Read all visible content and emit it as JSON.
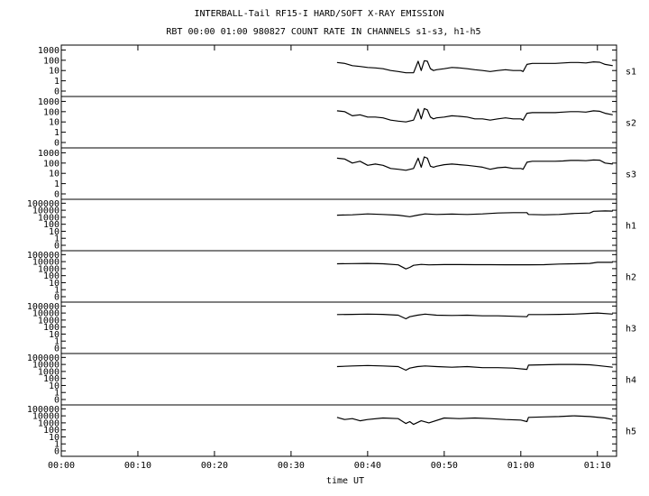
{
  "chart_data": {
    "type": "line",
    "title": "INTERBALL-Tail RF15-I HARD/SOFT X-RAY EMISSION",
    "subtitle": "RBT 00:00 01:00 980827  COUNT RATE IN CHANNELS s1-s3, h1-h5",
    "xlabel": "time UT",
    "x_tick_labels": [
      "00:00",
      "00:10",
      "00:20",
      "00:30",
      "00:40",
      "00:50",
      "01:00",
      "01:10"
    ],
    "x_ticks_min": [
      0,
      10,
      20,
      30,
      40,
      50,
      60,
      70
    ],
    "xlim_min": [
      0,
      72.5
    ],
    "y_scale": "log",
    "grid": false,
    "panels": [
      {
        "channel": "s1",
        "y_tick_labels": [
          "1000",
          "100",
          "10",
          "1",
          "0"
        ],
        "y_tick_values": [
          1000,
          100,
          10,
          1,
          0.1
        ],
        "ylim": [
          0.1,
          2000
        ],
        "x_min": [
          36.0,
          37.0,
          38.0,
          39.0,
          40.0,
          41.0,
          42.0,
          43.0,
          44.0,
          45.0,
          46.0,
          46.6,
          47.0,
          47.4,
          47.8,
          48.2,
          48.6,
          49.0,
          50.0,
          51.0,
          52.0,
          53.0,
          54.0,
          55.0,
          56.0,
          57.0,
          58.0,
          59.0,
          60.0,
          60.3,
          60.8,
          61.5,
          62.5,
          63.5,
          64.5,
          65.5,
          66.5,
          67.5,
          68.5,
          69.5,
          70.3,
          71.0,
          72.0
        ],
        "values": [
          60,
          50,
          30,
          25,
          20,
          18,
          15,
          10,
          8,
          6,
          6,
          80,
          10,
          90,
          80,
          15,
          10,
          12,
          15,
          20,
          18,
          15,
          12,
          10,
          8,
          10,
          12,
          10,
          10,
          8,
          40,
          50,
          50,
          50,
          50,
          55,
          60,
          60,
          55,
          70,
          65,
          40,
          30
        ]
      },
      {
        "channel": "s2",
        "y_tick_labels": [
          "1000",
          "100",
          "10",
          "1",
          "0"
        ],
        "y_tick_values": [
          1000,
          100,
          10,
          1,
          0.1
        ],
        "ylim": [
          0.1,
          2000
        ],
        "x_min": [
          36.0,
          37.0,
          38.0,
          39.0,
          40.0,
          41.0,
          42.0,
          43.0,
          44.0,
          45.0,
          46.0,
          46.6,
          47.0,
          47.4,
          47.8,
          48.2,
          48.6,
          49.0,
          50.0,
          51.0,
          52.0,
          53.0,
          54.0,
          55.0,
          56.0,
          57.0,
          58.0,
          59.0,
          60.0,
          60.3,
          60.8,
          61.5,
          62.5,
          63.5,
          64.5,
          65.5,
          66.5,
          67.5,
          68.5,
          69.5,
          70.3,
          71.0,
          72.0
        ],
        "values": [
          120,
          100,
          40,
          50,
          30,
          30,
          25,
          15,
          12,
          10,
          15,
          180,
          20,
          200,
          150,
          30,
          20,
          25,
          30,
          40,
          35,
          30,
          20,
          20,
          15,
          20,
          25,
          20,
          20,
          15,
          70,
          80,
          80,
          80,
          80,
          90,
          100,
          100,
          90,
          120,
          110,
          70,
          50
        ]
      },
      {
        "channel": "s3",
        "y_tick_labels": [
          "1000",
          "100",
          "10",
          "1",
          "0"
        ],
        "y_tick_values": [
          1000,
          100,
          10,
          1,
          0.1
        ],
        "ylim": [
          0.1,
          2000
        ],
        "x_min": [
          36.0,
          37.0,
          38.0,
          39.0,
          40.0,
          41.0,
          42.0,
          43.0,
          44.0,
          45.0,
          46.0,
          46.6,
          47.0,
          47.4,
          47.8,
          48.2,
          48.6,
          49.0,
          50.0,
          51.0,
          52.0,
          53.0,
          54.0,
          55.0,
          56.0,
          57.0,
          58.0,
          59.0,
          60.0,
          60.3,
          60.8,
          61.5,
          62.5,
          63.5,
          64.5,
          65.5,
          66.5,
          67.5,
          68.5,
          69.5,
          70.3,
          71.0,
          72.0
        ],
        "values": [
          300,
          250,
          100,
          150,
          60,
          80,
          60,
          30,
          25,
          20,
          30,
          300,
          40,
          400,
          300,
          50,
          40,
          50,
          70,
          80,
          70,
          60,
          50,
          40,
          25,
          35,
          40,
          30,
          30,
          25,
          120,
          150,
          150,
          150,
          150,
          160,
          180,
          180,
          170,
          200,
          190,
          100,
          80
        ]
      },
      {
        "channel": "h1",
        "y_tick_labels": [
          "100000",
          "10000",
          "1000",
          "100",
          "10",
          "1",
          "0"
        ],
        "y_tick_values": [
          100000,
          10000,
          1000,
          100,
          10,
          1,
          0.1
        ],
        "ylim": [
          0.1,
          200000
        ],
        "x_min": [
          36.0,
          38.0,
          40.0,
          42.0,
          44.0,
          45.5,
          46.5,
          47.5,
          49.0,
          51.0,
          53.0,
          55.0,
          57.0,
          59.0,
          60.8,
          61.0,
          63.0,
          65.0,
          67.0,
          69.0,
          69.5,
          71.0,
          72.0
        ],
        "values": [
          2000,
          2200,
          3000,
          2500,
          2000,
          1200,
          2000,
          3000,
          2500,
          2800,
          2500,
          3000,
          4000,
          4500,
          4500,
          2500,
          2200,
          2500,
          3500,
          4000,
          7000,
          8000,
          7500
        ]
      },
      {
        "channel": "h2",
        "y_tick_labels": [
          "100000",
          "10000",
          "1000",
          "100",
          "10",
          "1",
          "0"
        ],
        "y_tick_values": [
          100000,
          10000,
          1000,
          100,
          10,
          1,
          0.1
        ],
        "ylim": [
          0.1,
          200000
        ],
        "x_min": [
          36.0,
          38.0,
          40.0,
          42.0,
          44.0,
          45.0,
          45.5,
          46.0,
          47.0,
          48.0,
          50.0,
          52.0,
          54.0,
          56.0,
          58.0,
          60.0,
          61.0,
          63.0,
          65.0,
          67.0,
          69.0,
          70.0,
          72.0
        ],
        "values": [
          5000,
          5200,
          5500,
          5000,
          3500,
          900,
          1500,
          3000,
          4000,
          3500,
          3800,
          3800,
          3700,
          3700,
          3600,
          3600,
          3600,
          3700,
          4500,
          5000,
          5500,
          8000,
          8000
        ]
      },
      {
        "channel": "h3",
        "y_tick_labels": [
          "100000",
          "10000",
          "1000",
          "100",
          "10",
          "1",
          "0"
        ],
        "y_tick_values": [
          100000,
          10000,
          1000,
          100,
          10,
          1,
          0.1
        ],
        "ylim": [
          0.1,
          200000
        ],
        "x_min": [
          36.0,
          38.0,
          40.0,
          42.0,
          44.0,
          45.0,
          45.5,
          46.5,
          47.5,
          49.0,
          51.0,
          53.0,
          55.0,
          57.0,
          59.0,
          60.8,
          61.0,
          63.0,
          65.0,
          67.0,
          69.0,
          70.0,
          72.0
        ],
        "values": [
          6000,
          6500,
          7000,
          6500,
          5000,
          1500,
          3000,
          5000,
          7000,
          5000,
          4500,
          5000,
          4000,
          4000,
          3500,
          3000,
          6000,
          6000,
          6500,
          7000,
          9000,
          10000,
          7000
        ]
      },
      {
        "channel": "h4",
        "y_tick_labels": [
          "100000",
          "10000",
          "1000",
          "100",
          "10",
          "1",
          "0"
        ],
        "y_tick_values": [
          100000,
          10000,
          1000,
          100,
          10,
          1,
          0.1
        ],
        "ylim": [
          0.1,
          200000
        ],
        "x_min": [
          36.0,
          38.0,
          40.0,
          42.0,
          44.0,
          45.0,
          45.5,
          46.5,
          47.5,
          49.0,
          51.0,
          53.0,
          55.0,
          57.0,
          59.0,
          60.8,
          61.0,
          63.0,
          65.0,
          67.0,
          69.0,
          70.0,
          72.0
        ],
        "values": [
          5000,
          6000,
          7000,
          6000,
          5000,
          1500,
          3000,
          5000,
          6000,
          5000,
          4000,
          5000,
          3500,
          3500,
          3000,
          2000,
          8000,
          9000,
          10000,
          10000,
          9000,
          7000,
          4000
        ]
      },
      {
        "channel": "h5",
        "y_tick_labels": [
          "100000",
          "10000",
          "1000",
          "100",
          "10",
          "1",
          "0"
        ],
        "y_tick_values": [
          100000,
          10000,
          1000,
          100,
          10,
          1,
          0.1
        ],
        "ylim": [
          0.1,
          200000
        ],
        "x_min": [
          36.0,
          37.0,
          38.0,
          39.0,
          40.0,
          42.0,
          44.0,
          45.0,
          45.5,
          46.0,
          47.0,
          48.0,
          50.0,
          52.0,
          54.0,
          56.0,
          58.0,
          60.0,
          60.8,
          61.0,
          63.0,
          65.0,
          67.0,
          69.0,
          71.0,
          72.0
        ],
        "values": [
          6000,
          3000,
          4000,
          2000,
          3000,
          5000,
          4000,
          800,
          1500,
          600,
          2000,
          1000,
          5000,
          4000,
          5000,
          4000,
          3000,
          2500,
          1500,
          6000,
          7000,
          8000,
          10000,
          8000,
          5000,
          3000
        ]
      }
    ]
  }
}
